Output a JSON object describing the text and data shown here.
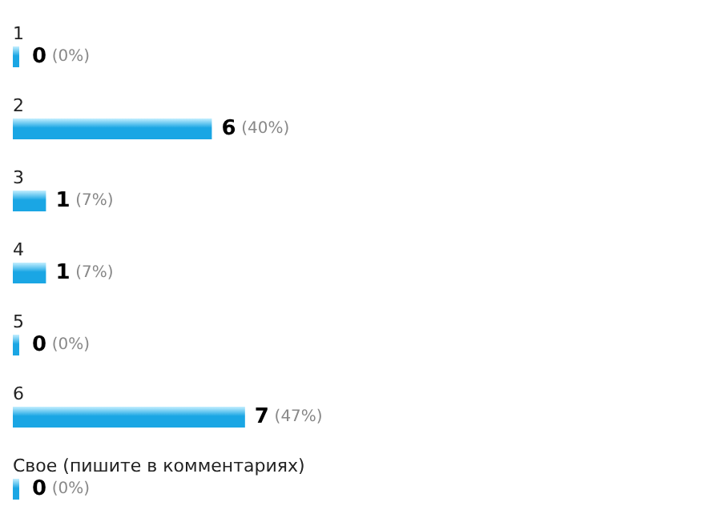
{
  "chart_data": {
    "type": "bar",
    "orientation": "horizontal",
    "categories": [
      "1",
      "2",
      "3",
      "4",
      "5",
      "6",
      "Свое (пишите в комментариях)"
    ],
    "values": [
      0,
      6,
      1,
      1,
      0,
      7,
      0
    ],
    "value_labels": [
      "0 (0%)",
      "6 (40%)",
      "1 (7%)",
      "1 (7%)",
      "0 (0%)",
      "7 (47%)",
      "0 (0%)"
    ],
    "color": "#1aa6e4"
  }
}
